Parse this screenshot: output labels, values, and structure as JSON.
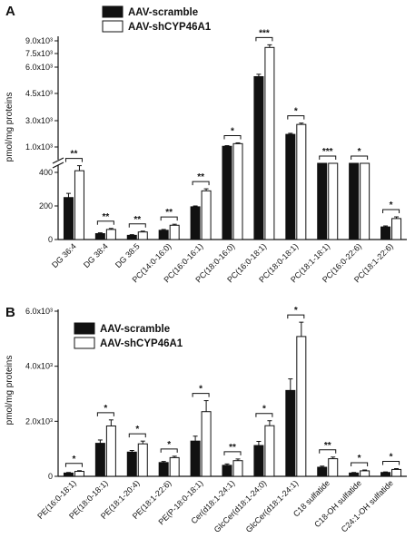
{
  "chart_data": [
    {
      "type": "bar",
      "panel": "A",
      "ylabel": "pmol/mg proteins",
      "y_axis_break": true,
      "y_lower_ticks": [
        "0",
        "200",
        "400"
      ],
      "y_upper_ticks": [
        "1.0x10³",
        "3.0x10³",
        "4.5x10³",
        "6.0x10³",
        "7.5x10³",
        "9.0x10³"
      ],
      "legend": [
        "AAV-scramble",
        "AAV-shCYP46A1"
      ],
      "categories": [
        "DG 36:4",
        "DG 38:4",
        "DG 38:5",
        "PC(14:0-16:0)",
        "PC(16:0-16:1)",
        "PC(18:0-16:0)",
        "PC(16:0-18:1)",
        "PC(18:0-18:1)",
        "PC(18:1-18:1)",
        "PC(16:0-22:6)",
        "PC(18:1-22:6)"
      ],
      "series": [
        {
          "name": "AAV-scramble",
          "values": [
            250,
            35,
            25,
            55,
            195,
            1050,
            6300,
            1950,
            700,
            700,
            75
          ],
          "errors": [
            25,
            5,
            4,
            5,
            5,
            50,
            180,
            80,
            30,
            30,
            6
          ]
        },
        {
          "name": "AAV-shCYP46A1",
          "values": [
            410,
            60,
            45,
            85,
            290,
            1250,
            8500,
            2700,
            780,
            900,
            125
          ],
          "errors": [
            30,
            6,
            5,
            6,
            12,
            60,
            200,
            100,
            35,
            40,
            10
          ]
        }
      ],
      "significance": [
        "**",
        "**",
        "**",
        "**",
        "**",
        "*",
        "***",
        "*",
        "***",
        "*",
        "*"
      ]
    },
    {
      "type": "bar",
      "panel": "B",
      "ylabel": "pmol/mg proteins",
      "ylim": [
        0,
        6000
      ],
      "y_ticks": [
        "0",
        "2.0x10³",
        "4.0x10³",
        "6.0x10³"
      ],
      "legend": [
        "AAV-scramble",
        "AAV-shCYP46A1"
      ],
      "categories": [
        "PE(16:0-18:1)",
        "PE(18:0-18:1)",
        "PE(18:1-20:4)",
        "PE(18:1-22:6)",
        "PE(P-18:0-18:1)",
        "Cer(d18:1-24:1)",
        "GlcCer(d18:1-24:0)",
        "GlcCer(d18:1-24:1)",
        "C18 sulfatide",
        "C18-OH sulfatide",
        "C24:1-OH sulfatide"
      ],
      "series": [
        {
          "name": "AAV-scramble",
          "values": [
            120,
            1200,
            880,
            500,
            1280,
            400,
            1120,
            3120,
            330,
            120,
            140
          ],
          "errors": [
            20,
            120,
            60,
            40,
            180,
            50,
            150,
            420,
            40,
            20,
            20
          ]
        },
        {
          "name": "AAV-shCYP46A1",
          "values": [
            180,
            1830,
            1180,
            680,
            2350,
            570,
            1840,
            5080,
            640,
            200,
            250
          ],
          "errors": [
            25,
            220,
            100,
            50,
            400,
            60,
            180,
            520,
            60,
            30,
            30
          ]
        }
      ],
      "significance": [
        "*",
        "*",
        "*",
        "*",
        "*",
        "**",
        "*",
        "*",
        "**",
        "*",
        "*"
      ]
    }
  ]
}
